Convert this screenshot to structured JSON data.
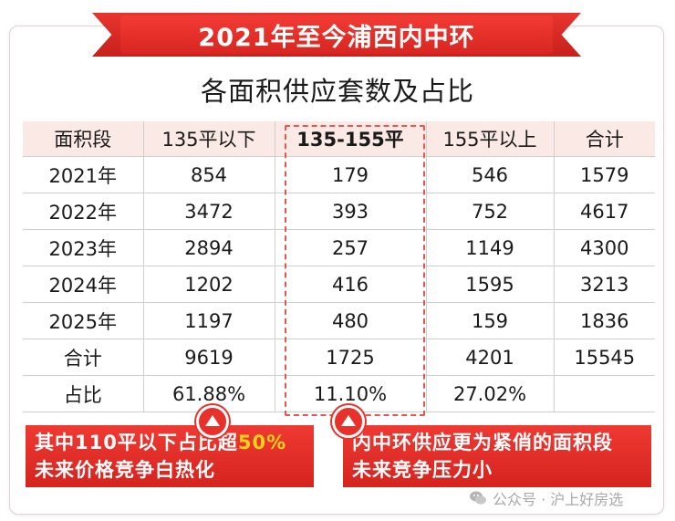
{
  "banner": {
    "title": "2021年至今浦西内中环"
  },
  "subtitle": "各面积供应套数及占比",
  "table": {
    "headers": [
      "面积段",
      "135平以下",
      "135-155平",
      "155平以上",
      "合计"
    ],
    "rows": [
      [
        "2021年",
        "854",
        "179",
        "546",
        "1579"
      ],
      [
        "2022年",
        "3472",
        "393",
        "752",
        "4617"
      ],
      [
        "2023年",
        "2894",
        "257",
        "1149",
        "4300"
      ],
      [
        "2024年",
        "1202",
        "416",
        "1595",
        "3213"
      ],
      [
        "2025年",
        "1197",
        "480",
        "159",
        "1836"
      ],
      [
        "合计",
        "9619",
        "1725",
        "4201",
        "15545"
      ],
      [
        "占比",
        "61.88%",
        "11.10%",
        "27.02%",
        ""
      ]
    ]
  },
  "notes": {
    "left_line1_prefix": "其中110平以下占比超",
    "left_line1_highlight": "50%",
    "left_line2": "未来价格竞争白热化",
    "right_line1": "内中环供应更为紧俏的面积段",
    "right_line2": "未来竞争压力小"
  },
  "watermark": {
    "text": "公众号 · 沪上好房选",
    "icon": "wechat-icon"
  },
  "colors": {
    "accent": "#e02520",
    "header_bg": "#fbe9e6",
    "highlight_yellow": "#ffd21a"
  }
}
